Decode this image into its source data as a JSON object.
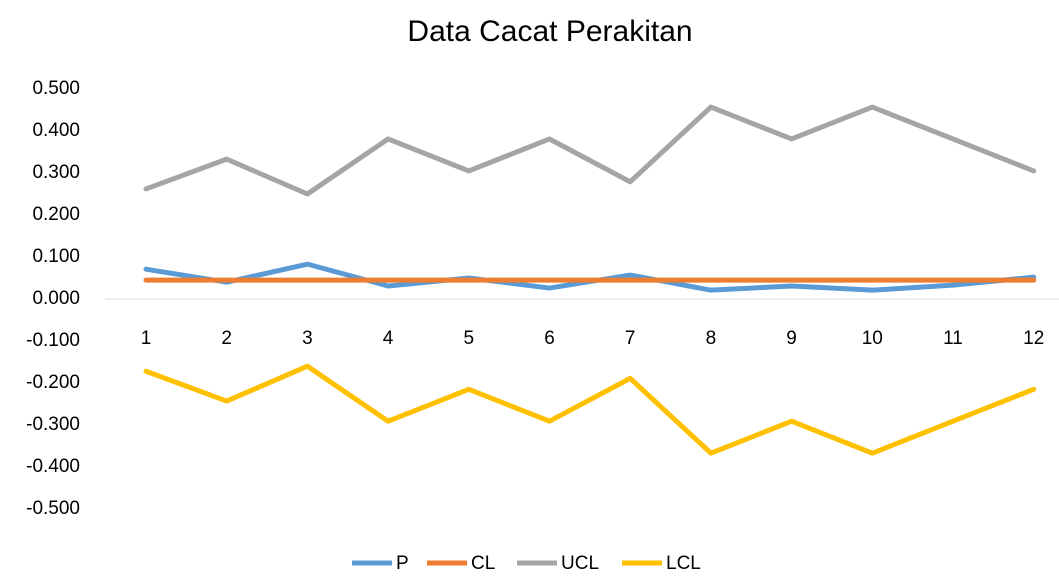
{
  "chart_data": {
    "type": "line",
    "title": "Data Cacat Perakitan",
    "categories": [
      "1",
      "2",
      "3",
      "4",
      "5",
      "6",
      "7",
      "8",
      "9",
      "10",
      "11",
      "12"
    ],
    "series": [
      {
        "name": "P",
        "color": "#5b9bd5",
        "values": [
          0.071,
          0.04,
          0.083,
          0.031,
          0.05,
          0.026,
          0.057,
          0.021,
          0.031,
          0.021,
          0.033,
          0.052
        ]
      },
      {
        "name": "CL",
        "color": "#ed7d31",
        "values": [
          0.045,
          0.045,
          0.045,
          0.045,
          0.045,
          0.045,
          0.045,
          0.045,
          0.045,
          0.045,
          0.045,
          0.045
        ]
      },
      {
        "name": "UCL",
        "color": "#a5a5a5",
        "values": [
          0.262,
          0.333,
          0.25,
          0.381,
          0.305,
          0.381,
          0.279,
          0.457,
          0.381,
          0.457,
          0.381,
          0.305
        ]
      },
      {
        "name": "LCL",
        "color": "#ffc000",
        "values": [
          -0.172,
          -0.243,
          -0.16,
          -0.291,
          -0.215,
          -0.291,
          -0.189,
          -0.367,
          -0.291,
          -0.367,
          -0.291,
          -0.215
        ]
      }
    ],
    "ylim": [
      -0.5,
      0.5
    ],
    "yticks": [
      {
        "value": 0.5,
        "label": "0.500"
      },
      {
        "value": 0.4,
        "label": "0.400"
      },
      {
        "value": 0.3,
        "label": "0.300"
      },
      {
        "value": 0.2,
        "label": "0.200"
      },
      {
        "value": 0.1,
        "label": "0.100"
      },
      {
        "value": 0,
        "label": "0.000"
      },
      {
        "value": -0.1,
        "label": "-0.100"
      },
      {
        "value": -0.2,
        "label": "-0.200"
      },
      {
        "value": -0.3,
        "label": "-0.300"
      },
      {
        "value": -0.4,
        "label": "-0.400"
      },
      {
        "value": -0.5,
        "label": "-0.500"
      }
    ],
    "grid": false,
    "legend": "bottom"
  }
}
